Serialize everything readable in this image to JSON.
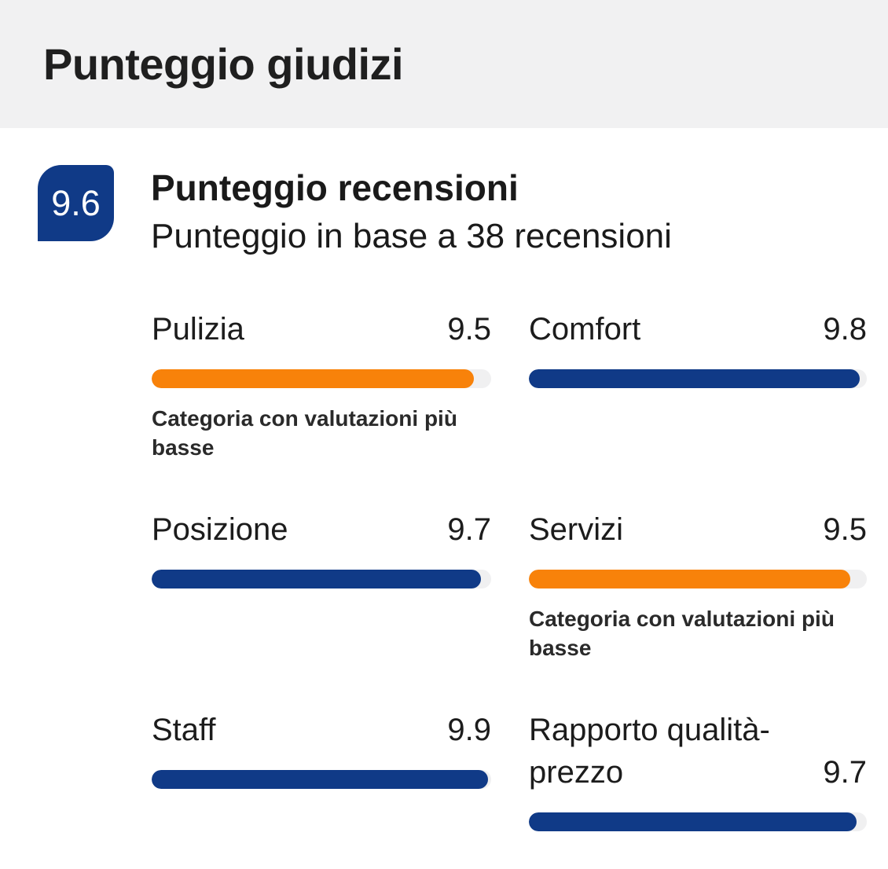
{
  "header": {
    "title": "Punteggio giudizi"
  },
  "summary": {
    "score": "9.6",
    "title": "Punteggio recensioni",
    "subtitle": "Punteggio in base a 38 recensioni"
  },
  "colors": {
    "accent_blue": "#103a87",
    "accent_orange": "#f8820a",
    "header_bg": "#f1f1f2",
    "bar_track": "#f0f0f1"
  },
  "categories": [
    {
      "label": "Pulizia",
      "score": "9.5",
      "value": 9.5,
      "lowest": true,
      "note": "Categoria con valutazioni più basse"
    },
    {
      "label": "Comfort",
      "score": "9.8",
      "value": 9.8,
      "lowest": false
    },
    {
      "label": "Posizione",
      "score": "9.7",
      "value": 9.7,
      "lowest": false
    },
    {
      "label": "Servizi",
      "score": "9.5",
      "value": 9.5,
      "lowest": true,
      "note": "Categoria con valutazioni più basse"
    },
    {
      "label": "Staff",
      "score": "9.9",
      "value": 9.9,
      "lowest": false
    },
    {
      "label": "Rapporto qualità-prezzo",
      "score": "9.7",
      "value": 9.7,
      "lowest": false
    }
  ],
  "chart_data": {
    "type": "bar",
    "title": "Punteggio recensioni",
    "subtitle": "Punteggio in base a 38 recensioni",
    "overall_score": 9.6,
    "review_count": 38,
    "scale_max": 10,
    "categories": [
      "Pulizia",
      "Comfort",
      "Posizione",
      "Servizi",
      "Staff",
      "Rapporto qualità-prezzo"
    ],
    "values": [
      9.5,
      9.8,
      9.7,
      9.5,
      9.9,
      9.7
    ],
    "lowest_rated_flags": [
      true,
      false,
      false,
      true,
      false,
      false
    ],
    "lowest_rated_note": "Categoria con valutazioni più basse"
  }
}
